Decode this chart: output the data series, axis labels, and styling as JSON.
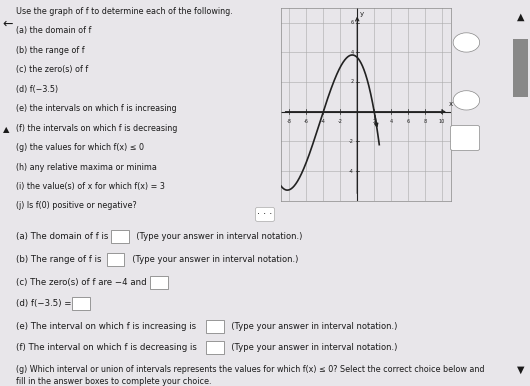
{
  "page_bg": "#e8e6ea",
  "panel_bg": "#f0eef2",
  "text_color": "#1a1a1a",
  "graph_bg": "#e8e6ea",
  "graph_border": "#888888",
  "curve_color": "#222222",
  "axis_color": "#222222",
  "grid_color": "#aaaaaa",
  "divider_color": "#cccccc",
  "box_color": "#dddddd",
  "box_border": "#888888",
  "top_text_lines": [
    "Use the graph of f to determine each of the following.",
    "(a) the domain of f",
    "(b) the range of f",
    "(c) the zero(s) of f",
    "(d) f(−3.5)",
    "(e) the intervals on which f is increasing",
    "(f) the intervals on which f is decreasing",
    "(g) the values for which f(x) ≤ 0",
    "(h) any relative maxima or minima",
    "(i) the value(s) of x for which f(x) = 3",
    "(j) Is f(0) positive or negative?"
  ],
  "answer_lines": [
    "(a) The domain of f is",
    "(b) The range of f is",
    "(c) The zero(s) of f are −4 and",
    "(d) f(−3.5) =",
    "(e) The interval on which f is increasing is",
    "(f) The interval on which f is decreasing is",
    "(g) Which interval or union of intervals represents the values for which f(x) ≤ 0? Select the correct choice below and\nfill in the answer boxes to complete your choice."
  ],
  "bottom_text": "(Type your answer in interval notation.)",
  "graph_xlim": [
    -9,
    11
  ],
  "graph_ylim": [
    -6,
    7
  ],
  "key_points_x": [
    -9,
    -4,
    -2,
    2
  ],
  "key_points_y": [
    -5,
    0,
    3,
    0
  ],
  "xtick_vals": [
    -8,
    -6,
    -4,
    -2,
    2,
    4,
    6,
    8,
    10
  ],
  "ytick_vals": [
    -4,
    -2,
    2,
    4,
    6
  ]
}
